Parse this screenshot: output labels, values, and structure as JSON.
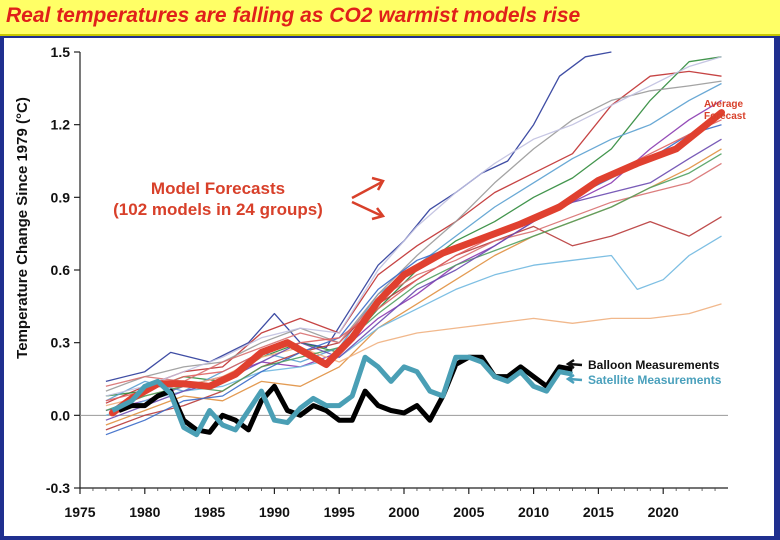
{
  "header": {
    "title": "Real temperatures are falling as CO2 warmist models rise"
  },
  "chart_data": {
    "type": "line",
    "ylabel": "Temperature Change Since 1979 (°C)",
    "xlabel": "",
    "xlim": [
      1975,
      2025
    ],
    "ylim": [
      -0.3,
      1.5
    ],
    "x_ticks": [
      "1975",
      "1980",
      "1985",
      "1990",
      "1995",
      "2000",
      "2005",
      "2010",
      "2015",
      "2020"
    ],
    "y_ticks": [
      "1.5",
      "1.2",
      "0.9",
      "0.6",
      "0.3",
      "0.0",
      "-0.3"
    ],
    "annotations": {
      "model_forecasts_line1": "Model Forecasts",
      "model_forecasts_line2": "(102 models in 24 groups)",
      "average_line1": "Average",
      "average_line2": "Forecast",
      "balloon": "Balloon Measurements",
      "satellite": "Satellite Measurements"
    },
    "colors": {
      "average": "#e0402f",
      "balloon": "#000000",
      "satellite": "#4a9fb5"
    },
    "series": [
      {
        "name": "Average Forecast",
        "x": [
          1977.5,
          1979,
          1981,
          1983,
          1985,
          1987,
          1989,
          1991,
          1993,
          1994,
          1996,
          1998,
          2000,
          2003,
          2006,
          2009,
          2012,
          2015,
          2018,
          2021,
          2024.5
        ],
        "y": [
          0.01,
          0.07,
          0.13,
          0.13,
          0.12,
          0.17,
          0.26,
          0.3,
          0.24,
          0.21,
          0.32,
          0.47,
          0.58,
          0.67,
          0.73,
          0.79,
          0.86,
          0.97,
          1.04,
          1.1,
          1.25
        ]
      },
      {
        "name": "Balloon Measurements",
        "x": [
          1978,
          1979,
          1980,
          1981,
          1982,
          1983,
          1984,
          1985,
          1986,
          1987,
          1988,
          1989,
          1990,
          1991,
          1992,
          1993,
          1994,
          1995,
          1996,
          1997,
          1998,
          1999,
          2000,
          2001,
          2002,
          2003,
          2004,
          2005,
          2006,
          2007,
          2008,
          2009,
          2010,
          2011,
          2012,
          2013
        ],
        "y": [
          0.02,
          0.04,
          0.04,
          0.08,
          0.1,
          -0.02,
          -0.06,
          -0.07,
          0.0,
          -0.02,
          -0.06,
          0.06,
          0.12,
          0.02,
          0.0,
          0.04,
          0.02,
          -0.02,
          -0.02,
          0.1,
          0.04,
          0.02,
          0.01,
          0.04,
          -0.02,
          0.08,
          0.21,
          0.24,
          0.24,
          0.16,
          0.16,
          0.2,
          0.16,
          0.12,
          0.2,
          0.19
        ]
      },
      {
        "name": "Satellite Measurements",
        "x": [
          1977.5,
          1979,
          1980,
          1981,
          1982,
          1983,
          1984,
          1985,
          1986,
          1987,
          1988,
          1989,
          1990,
          1991,
          1992,
          1993,
          1994,
          1995,
          1996,
          1997,
          1998,
          1999,
          2000,
          2001,
          2002,
          2003,
          2004,
          2005,
          2006,
          2007,
          2008,
          2009,
          2010,
          2011,
          2012,
          2013
        ],
        "y": [
          0.02,
          0.06,
          0.12,
          0.14,
          0.09,
          -0.05,
          -0.08,
          0.02,
          -0.04,
          -0.06,
          0.02,
          0.1,
          -0.02,
          -0.03,
          0.03,
          0.07,
          0.04,
          0.04,
          0.08,
          0.24,
          0.2,
          0.14,
          0.2,
          0.18,
          0.1,
          0.08,
          0.24,
          0.24,
          0.22,
          0.16,
          0.14,
          0.18,
          0.12,
          0.1,
          0.18,
          0.17
        ]
      }
    ],
    "model_lines": [
      {
        "color": "#2a3a9a",
        "x": [
          1977,
          1980,
          1982,
          1985,
          1988,
          1990,
          1992,
          1994,
          1996,
          1998,
          2000,
          2002,
          2004,
          2006,
          2008,
          2010,
          2012,
          2014,
          2016
        ],
        "y": [
          0.14,
          0.18,
          0.26,
          0.22,
          0.3,
          0.42,
          0.3,
          0.28,
          0.45,
          0.62,
          0.72,
          0.85,
          0.92,
          1.0,
          1.05,
          1.2,
          1.4,
          1.48,
          1.5
        ]
      },
      {
        "color": "#c03030",
        "x": [
          1977,
          1980,
          1983,
          1986,
          1989,
          1992,
          1995,
          1998,
          2001,
          2004,
          2007,
          2010,
          2013,
          2016,
          2019,
          2022,
          2024.5
        ],
        "y": [
          0.05,
          0.12,
          0.18,
          0.2,
          0.34,
          0.4,
          0.34,
          0.58,
          0.7,
          0.8,
          0.92,
          1.0,
          1.08,
          1.28,
          1.4,
          1.42,
          1.4
        ]
      },
      {
        "color": "#2e8a3a",
        "x": [
          1977,
          1980,
          1983,
          1986,
          1989,
          1992,
          1995,
          1998,
          2001,
          2004,
          2007,
          2010,
          2013,
          2016,
          2019,
          2022,
          2024.5
        ],
        "y": [
          0.08,
          0.1,
          0.16,
          0.14,
          0.24,
          0.3,
          0.26,
          0.44,
          0.6,
          0.72,
          0.8,
          0.9,
          0.98,
          1.1,
          1.3,
          1.46,
          1.48
        ]
      },
      {
        "color": "#8a3ab0",
        "x": [
          1977,
          1980,
          1983,
          1986,
          1989,
          1992,
          1995,
          1998,
          2001,
          2004,
          2007,
          2010,
          2013,
          2016,
          2019,
          2022,
          2024.5
        ],
        "y": [
          0.02,
          0.06,
          0.12,
          0.16,
          0.22,
          0.2,
          0.26,
          0.4,
          0.5,
          0.62,
          0.7,
          0.8,
          0.88,
          0.96,
          1.1,
          1.22,
          1.3
        ]
      },
      {
        "color": "#e09040",
        "x": [
          1977,
          1980,
          1983,
          1986,
          1989,
          1992,
          1995,
          1998,
          2001,
          2004,
          2007,
          2010,
          2013,
          2016,
          2019,
          2022,
          2024.5
        ],
        "y": [
          -0.04,
          0.02,
          0.08,
          0.06,
          0.14,
          0.12,
          0.2,
          0.36,
          0.46,
          0.56,
          0.66,
          0.74,
          0.8,
          0.86,
          0.94,
          1.02,
          1.1
        ]
      },
      {
        "color": "#5aa0d0",
        "x": [
          1977,
          1980,
          1983,
          1986,
          1989,
          1992,
          1995,
          1998,
          2001,
          2004,
          2007,
          2010,
          2013,
          2016,
          2019,
          2022,
          2024.5
        ],
        "y": [
          0.06,
          0.14,
          0.1,
          0.18,
          0.26,
          0.22,
          0.28,
          0.5,
          0.62,
          0.74,
          0.86,
          0.96,
          1.06,
          1.14,
          1.2,
          1.3,
          1.37
        ]
      },
      {
        "color": "#b83a3a",
        "x": [
          1977,
          1980,
          1983,
          1986,
          1989,
          1992,
          1995,
          1998,
          2001,
          2004,
          2007,
          2010,
          2013,
          2016,
          2019,
          2022,
          2024.5
        ],
        "y": [
          -0.06,
          0.0,
          0.04,
          0.1,
          0.2,
          0.26,
          0.3,
          0.46,
          0.56,
          0.66,
          0.72,
          0.78,
          0.7,
          0.74,
          0.8,
          0.74,
          0.82
        ]
      },
      {
        "color": "#70b8e0",
        "x": [
          1977,
          1980,
          1983,
          1986,
          1989,
          1992,
          1995,
          1998,
          2001,
          2004,
          2007,
          2010,
          2013,
          2016,
          2018,
          2020,
          2022,
          2024.5
        ],
        "y": [
          0.0,
          0.06,
          0.1,
          0.12,
          0.18,
          0.2,
          0.24,
          0.36,
          0.44,
          0.52,
          0.58,
          0.62,
          0.64,
          0.66,
          0.52,
          0.56,
          0.66,
          0.74
        ]
      },
      {
        "color": "#f0b080",
        "x": [
          1977,
          1980,
          1983,
          1986,
          1989,
          1992,
          1995,
          1998,
          2001,
          2004,
          2007,
          2010,
          2013,
          2016,
          2019,
          2022,
          2024.5
        ],
        "y": [
          0.04,
          0.08,
          0.12,
          0.16,
          0.24,
          0.28,
          0.22,
          0.3,
          0.34,
          0.36,
          0.38,
          0.4,
          0.38,
          0.4,
          0.4,
          0.42,
          0.46
        ]
      },
      {
        "color": "#9a9a9a",
        "x": [
          1977,
          1980,
          1983,
          1986,
          1989,
          1992,
          1995,
          1998,
          2001,
          2004,
          2007,
          2010,
          2013,
          2016,
          2019,
          2022,
          2024.5
        ],
        "y": [
          0.1,
          0.16,
          0.2,
          0.22,
          0.3,
          0.36,
          0.3,
          0.5,
          0.66,
          0.8,
          0.96,
          1.1,
          1.22,
          1.3,
          1.34,
          1.36,
          1.38
        ]
      },
      {
        "color": "#3a6ac8",
        "x": [
          1977,
          1980,
          1983,
          1986,
          1989,
          1992,
          1995,
          1998,
          2001,
          2004,
          2007,
          2010,
          2013,
          2016,
          2019,
          2022,
          2024.5
        ],
        "y": [
          -0.08,
          -0.02,
          0.06,
          0.08,
          0.18,
          0.26,
          0.32,
          0.52,
          0.64,
          0.7,
          0.76,
          0.82,
          0.9,
          0.98,
          1.06,
          1.16,
          1.2
        ]
      },
      {
        "color": "#d87070",
        "x": [
          1977,
          1980,
          1983,
          1986,
          1989,
          1992,
          1995,
          1998,
          2001,
          2004,
          2007,
          2010,
          2013,
          2016,
          2019,
          2022,
          2024.5
        ],
        "y": [
          0.12,
          0.16,
          0.14,
          0.22,
          0.28,
          0.34,
          0.3,
          0.48,
          0.58,
          0.64,
          0.72,
          0.76,
          0.82,
          0.88,
          0.92,
          0.96,
          1.04
        ]
      },
      {
        "color": "#50a060",
        "x": [
          1977,
          1980,
          1983,
          1986,
          1989,
          1992,
          1995,
          1998,
          2001,
          2004,
          2007,
          2010,
          2013,
          2016,
          2019,
          2022,
          2024.5
        ],
        "y": [
          0.02,
          0.08,
          0.12,
          0.1,
          0.2,
          0.24,
          0.28,
          0.42,
          0.54,
          0.62,
          0.68,
          0.74,
          0.8,
          0.86,
          0.94,
          1.0,
          1.08
        ]
      },
      {
        "color": "#c0c0e0",
        "x": [
          1977,
          1980,
          1983,
          1986,
          1989,
          1992,
          1995,
          1998,
          2001,
          2004,
          2007,
          2010,
          2013,
          2016,
          2019,
          2022,
          2024.5
        ],
        "y": [
          0.08,
          0.12,
          0.18,
          0.24,
          0.32,
          0.36,
          0.34,
          0.6,
          0.78,
          0.92,
          1.04,
          1.14,
          1.2,
          1.28,
          1.36,
          1.44,
          1.48
        ]
      },
      {
        "color": "#6a4ab0",
        "x": [
          1977,
          1980,
          1983,
          1986,
          1989,
          1992,
          1995,
          1998,
          2001,
          2004,
          2007,
          2010,
          2013,
          2016,
          2019,
          2022,
          2024.5
        ],
        "y": [
          -0.02,
          0.04,
          0.1,
          0.14,
          0.22,
          0.3,
          0.24,
          0.38,
          0.52,
          0.6,
          0.7,
          0.8,
          0.88,
          0.92,
          0.96,
          1.06,
          1.14
        ]
      },
      {
        "color": "#e06060",
        "x": [
          1977,
          1980,
          1983,
          1986,
          1989,
          1992,
          1995,
          1998,
          2001,
          2004,
          2007,
          2010,
          2013,
          2016,
          2019,
          2022,
          2024.5
        ],
        "y": [
          0.06,
          0.1,
          0.16,
          0.18,
          0.26,
          0.3,
          0.32,
          0.44,
          0.56,
          0.66,
          0.74,
          0.82,
          0.9,
          1.0,
          1.08,
          1.16,
          1.22
        ]
      }
    ]
  }
}
